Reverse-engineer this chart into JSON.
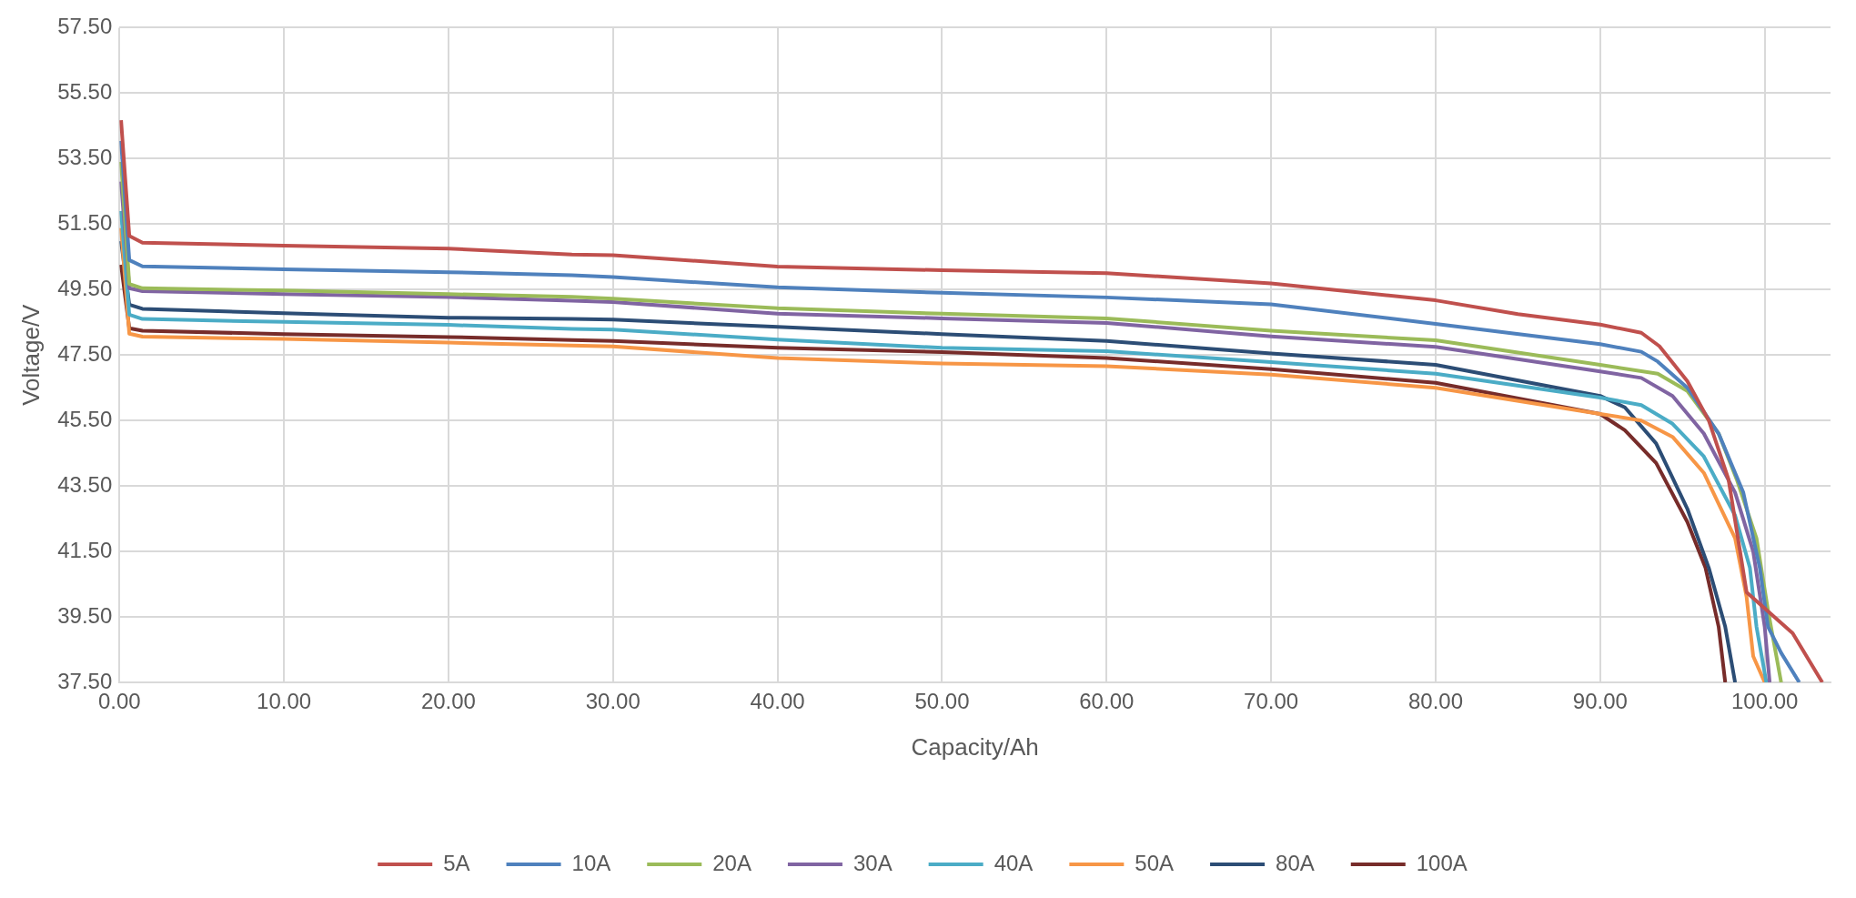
{
  "chart_data": {
    "type": "line",
    "xlabel": "Capacity/Ah",
    "ylabel": "Voltage/V",
    "xlim": [
      0,
      104
    ],
    "ylim": [
      37.5,
      57.5
    ],
    "xticks": [
      {
        "value": 0,
        "label": "0.00"
      },
      {
        "value": 10,
        "label": "10.00"
      },
      {
        "value": 20,
        "label": "20.00"
      },
      {
        "value": 30,
        "label": "30.00"
      },
      {
        "value": 40,
        "label": "40.00"
      },
      {
        "value": 50,
        "label": "50.00"
      },
      {
        "value": 60,
        "label": "60.00"
      },
      {
        "value": 70,
        "label": "70.00"
      },
      {
        "value": 80,
        "label": "80.00"
      },
      {
        "value": 90,
        "label": "90.00"
      },
      {
        "value": 100,
        "label": "100.00"
      }
    ],
    "yticks": [
      {
        "value": 37.5,
        "label": "37.50"
      },
      {
        "value": 39.5,
        "label": "39.50"
      },
      {
        "value": 41.5,
        "label": "41.50"
      },
      {
        "value": 43.5,
        "label": "43.50"
      },
      {
        "value": 45.5,
        "label": "45.50"
      },
      {
        "value": 47.5,
        "label": "47.50"
      },
      {
        "value": 49.5,
        "label": "49.50"
      },
      {
        "value": 51.5,
        "label": "51.50"
      },
      {
        "value": 53.5,
        "label": "53.50"
      },
      {
        "value": 55.5,
        "label": "55.50"
      },
      {
        "value": 57.5,
        "label": "57.50"
      }
    ],
    "grid": true,
    "legend": "bottom",
    "marker": "none",
    "line_style": "solid",
    "series": [
      {
        "name": "5A",
        "color": "#c0504d",
        "x": [
          0.1,
          0.6,
          1.4,
          10,
          20,
          27.5,
          30,
          40,
          50,
          60,
          70,
          80,
          85,
          90,
          92.5,
          93.6,
          95.3,
          96.6,
          97.8,
          98.9,
          101.7,
          103.5
        ],
        "values": [
          54.67,
          51.14,
          50.93,
          50.84,
          50.75,
          50.57,
          50.55,
          50.2,
          50.09,
          50.0,
          49.69,
          49.17,
          48.75,
          48.43,
          48.18,
          47.77,
          46.7,
          45.5,
          43.7,
          40.25,
          39.0,
          37.5
        ]
      },
      {
        "name": "10A",
        "color": "#4f81bd",
        "x": [
          0.1,
          0.6,
          1.4,
          10,
          20,
          27.5,
          30,
          40,
          50,
          60,
          70,
          80,
          90,
          92.5,
          93.5,
          95.3,
          97.2,
          98.7,
          99.7,
          100.2,
          101,
          102.1
        ],
        "values": [
          54.04,
          50.4,
          50.21,
          50.12,
          50.03,
          49.94,
          49.88,
          49.57,
          49.4,
          49.26,
          49.05,
          48.45,
          47.83,
          47.6,
          47.3,
          46.5,
          45.1,
          43.3,
          41.0,
          39.2,
          38.4,
          37.5
        ]
      },
      {
        "name": "20A",
        "color": "#9bbb59",
        "x": [
          0.1,
          0.6,
          1.4,
          10,
          20,
          27.5,
          30,
          40,
          50,
          60,
          70,
          80,
          90,
          93.5,
          95.3,
          97.2,
          98.3,
          99.5,
          100.2,
          101
        ],
        "values": [
          53.4,
          49.67,
          49.54,
          49.47,
          49.36,
          49.28,
          49.22,
          48.93,
          48.76,
          48.62,
          48.24,
          47.95,
          47.2,
          46.93,
          46.4,
          45.1,
          43.7,
          41.9,
          39.7,
          37.5
        ]
      },
      {
        "name": "30A",
        "color": "#8064a2",
        "x": [
          0.1,
          0.6,
          1.4,
          10,
          20,
          27.5,
          30,
          40,
          50,
          60,
          70,
          80,
          90,
          92.5,
          94.4,
          96.3,
          98.2,
          99.3,
          100,
          100.3
        ],
        "values": [
          52.8,
          49.54,
          49.45,
          49.36,
          49.27,
          49.16,
          49.12,
          48.76,
          48.62,
          48.48,
          48.07,
          47.75,
          47.0,
          46.8,
          46.25,
          45.1,
          43.3,
          41.5,
          39.2,
          37.5
        ]
      },
      {
        "name": "40A",
        "color": "#4bacc6",
        "x": [
          0.1,
          0.6,
          1.4,
          10,
          20,
          27.5,
          30,
          40,
          50,
          60,
          70,
          80,
          90,
          92.5,
          94.4,
          96.3,
          98.2,
          99.1,
          99.5,
          100.1
        ],
        "values": [
          51.9,
          48.73,
          48.6,
          48.51,
          48.42,
          48.3,
          48.28,
          47.97,
          47.72,
          47.62,
          47.28,
          46.93,
          46.2,
          45.97,
          45.4,
          44.4,
          42.6,
          41.0,
          39.2,
          37.5
        ]
      },
      {
        "name": "50A",
        "color": "#f79646",
        "x": [
          0.1,
          0.6,
          1.4,
          10,
          20,
          27.5,
          30,
          40,
          50,
          60,
          70,
          80,
          90,
          92.5,
          94.4,
          96.3,
          98.2,
          98.9,
          99.3,
          100
        ],
        "values": [
          51.38,
          48.15,
          48.06,
          47.99,
          47.88,
          47.79,
          47.76,
          47.41,
          47.24,
          47.16,
          46.9,
          46.5,
          45.7,
          45.5,
          45.0,
          43.9,
          41.9,
          40.1,
          38.3,
          37.5
        ]
      },
      {
        "name": "80A",
        "color": "#2c4d75",
        "x": [
          0.1,
          0.6,
          1.4,
          10,
          20,
          27.5,
          30,
          40,
          50,
          60,
          70,
          80,
          90,
          91.5,
          93.4,
          95.3,
          96.6,
          97.6,
          98.2
        ],
        "values": [
          50.98,
          49.04,
          48.91,
          48.78,
          48.64,
          48.6,
          48.58,
          48.36,
          48.14,
          47.93,
          47.55,
          47.2,
          46.25,
          45.9,
          44.8,
          42.8,
          41.0,
          39.2,
          37.5
        ]
      },
      {
        "name": "100A",
        "color": "#772c2a",
        "x": [
          0.1,
          0.6,
          1.4,
          10,
          20,
          27.5,
          30,
          40,
          50,
          60,
          70,
          80,
          90,
          91.5,
          93.4,
          95.3,
          96.4,
          97.2,
          97.6
        ],
        "values": [
          50.26,
          48.32,
          48.24,
          48.14,
          48.05,
          47.96,
          47.93,
          47.72,
          47.59,
          47.41,
          47.07,
          46.65,
          45.7,
          45.2,
          44.2,
          42.4,
          41.0,
          39.2,
          37.5
        ]
      }
    ]
  }
}
